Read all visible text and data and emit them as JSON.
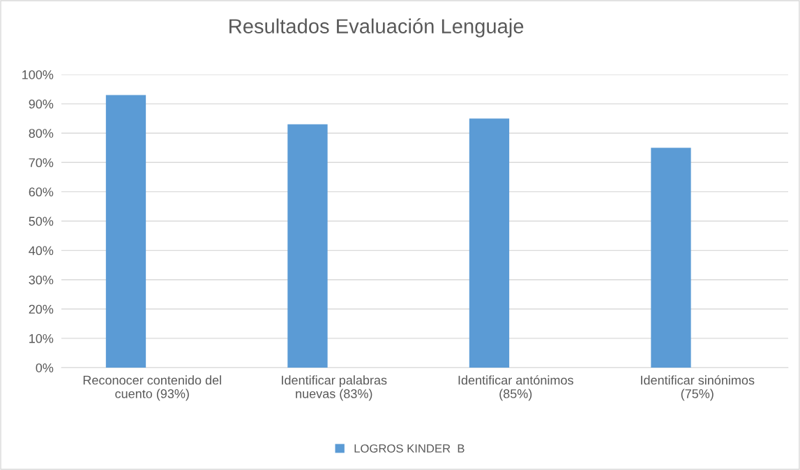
{
  "chart_data": {
    "type": "bar",
    "title": "Resultados Evaluación Lenguaje",
    "categories": [
      "Reconocer contenido del cuento (93%)",
      "Identificar palabras nuevas (83%)",
      "Identificar antónimos (85%)",
      "Identificar sinónimos (75%)"
    ],
    "series": [
      {
        "name": "LOGROS KINDER  B",
        "color": "#5b9bd5",
        "values": [
          93,
          83,
          85,
          75
        ]
      }
    ],
    "ylim": [
      0,
      100
    ],
    "yticks": [
      {
        "value": 0,
        "label": "0%"
      },
      {
        "value": 10,
        "label": "10%"
      },
      {
        "value": 20,
        "label": "20%"
      },
      {
        "value": 30,
        "label": "30%"
      },
      {
        "value": 40,
        "label": "40%"
      },
      {
        "value": 50,
        "label": "50%"
      },
      {
        "value": 60,
        "label": "60%"
      },
      {
        "value": 70,
        "label": "70%"
      },
      {
        "value": 80,
        "label": "80%"
      },
      {
        "value": 90,
        "label": "90%"
      },
      {
        "value": 100,
        "label": "100%"
      }
    ],
    "grid": "y",
    "legend": "bottom"
  }
}
